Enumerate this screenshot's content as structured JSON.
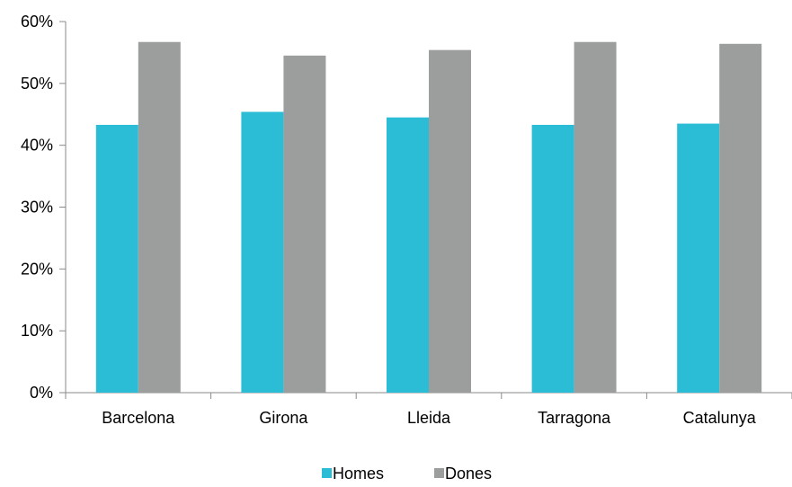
{
  "chart_data": {
    "type": "bar",
    "categories": [
      "Barcelona",
      "Girona",
      "Lleida",
      "Tarragona",
      "Catalunya"
    ],
    "series": [
      {
        "name": "Homes",
        "color": "#2bbcd6",
        "values": [
          43.3,
          45.4,
          44.5,
          43.3,
          43.5
        ]
      },
      {
        "name": "Dones",
        "color": "#9c9e9d",
        "values": [
          56.7,
          54.5,
          55.4,
          56.7,
          56.4
        ]
      }
    ],
    "y_ticks": [
      "0%",
      "10%",
      "20%",
      "30%",
      "40%",
      "50%",
      "60%"
    ],
    "ylim": [
      0,
      60
    ],
    "grid": false,
    "legend_position": "bottom-center"
  }
}
